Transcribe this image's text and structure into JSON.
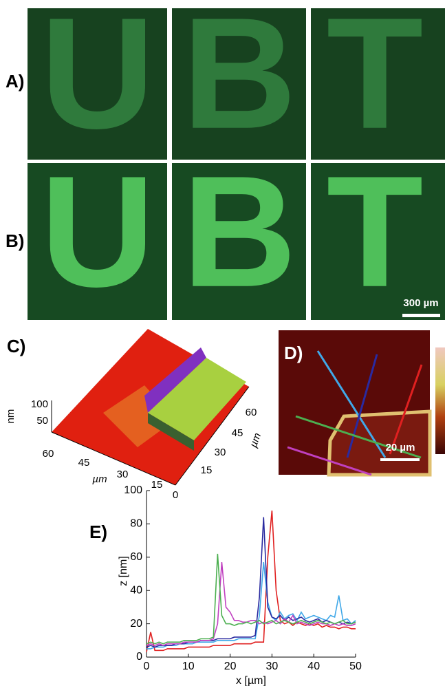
{
  "panel_labels": [
    "A)",
    "B)",
    "C)",
    "D)",
    "E)"
  ],
  "letters": [
    "U",
    "B",
    "T"
  ],
  "scale_bar_ab": "300 µm",
  "panel_c": {
    "z_label": "nm",
    "z_ticks": [
      "100",
      "50"
    ],
    "x_label": "µm",
    "x_ticks": [
      "60",
      "45",
      "30",
      "15",
      "0"
    ],
    "y_label": "µm",
    "y_ticks": [
      "60",
      "45",
      "30",
      "15"
    ]
  },
  "panel_d": {
    "scale_bar": "20 µm"
  },
  "chart_data": {
    "type": "line",
    "xlabel": "x [µm]",
    "ylabel": "z [nm]",
    "x": [
      0,
      1,
      2,
      3,
      4,
      5,
      6,
      7,
      8,
      9,
      10,
      11,
      12,
      13,
      14,
      15,
      16,
      17,
      18,
      19,
      20,
      21,
      22,
      23,
      24,
      25,
      26,
      27,
      28,
      29,
      30,
      31,
      32,
      33,
      34,
      35,
      36,
      37,
      38,
      39,
      40,
      41,
      42,
      43,
      44,
      45,
      46,
      47,
      48,
      49,
      50
    ],
    "series": [
      {
        "color": "#e02020",
        "values": [
          3,
          15,
          4,
          4,
          4,
          5,
          5,
          5,
          5,
          5,
          6,
          6,
          6,
          6,
          6,
          6,
          7,
          7,
          7,
          7,
          7,
          8,
          8,
          8,
          8,
          8,
          9,
          9,
          9,
          60,
          88,
          40,
          22,
          20,
          21,
          19,
          21,
          20,
          19,
          20,
          19,
          20,
          18,
          19,
          18,
          18,
          17,
          18,
          18,
          17,
          17
        ]
      },
      {
        "color": "#40a8e8",
        "values": [
          5,
          5,
          6,
          6,
          6,
          7,
          7,
          7,
          8,
          8,
          8,
          8,
          9,
          9,
          9,
          9,
          9,
          10,
          10,
          10,
          10,
          10,
          11,
          11,
          11,
          11,
          11,
          25,
          57,
          33,
          24,
          22,
          27,
          23,
          25,
          26,
          22,
          27,
          23,
          24,
          25,
          24,
          23,
          22,
          25,
          24,
          37,
          22,
          23,
          20,
          22
        ]
      },
      {
        "color": "#2a2aa0",
        "values": [
          6,
          7,
          6,
          7,
          7,
          7,
          7,
          8,
          8,
          8,
          9,
          9,
          9,
          10,
          10,
          10,
          10,
          11,
          11,
          11,
          11,
          12,
          12,
          12,
          12,
          12,
          13,
          36,
          84,
          30,
          24,
          23,
          25,
          22,
          24,
          22,
          23,
          24,
          22,
          21,
          22,
          23,
          21,
          22,
          21,
          20,
          21,
          20,
          21,
          20,
          21
        ]
      },
      {
        "color": "#c040c0",
        "values": [
          7,
          8,
          7,
          8,
          7,
          8,
          8,
          8,
          8,
          9,
          9,
          9,
          9,
          10,
          10,
          10,
          11,
          20,
          57,
          30,
          27,
          22,
          22,
          21,
          21,
          22,
          22,
          20,
          21,
          20,
          21,
          22,
          20,
          23,
          21,
          25,
          20,
          21,
          20,
          19,
          20,
          21,
          20,
          20,
          19,
          20,
          19,
          20,
          19,
          19,
          20
        ]
      },
      {
        "color": "#4caf50",
        "values": [
          8,
          9,
          8,
          9,
          8,
          9,
          9,
          9,
          9,
          10,
          10,
          10,
          10,
          11,
          11,
          11,
          12,
          62,
          25,
          20,
          20,
          19,
          20,
          20,
          21,
          20,
          21,
          22,
          20,
          21,
          22,
          20,
          21,
          22,
          21,
          20,
          21,
          22,
          21,
          20,
          21,
          22,
          21,
          20,
          21,
          20,
          21,
          22,
          20,
          20,
          21
        ]
      }
    ],
    "xlim": [
      0,
      50
    ],
    "ylim": [
      0,
      100
    ],
    "xticks": [
      0,
      10,
      20,
      30,
      40,
      50
    ],
    "yticks": [
      0,
      20,
      40,
      60,
      80,
      100
    ]
  }
}
